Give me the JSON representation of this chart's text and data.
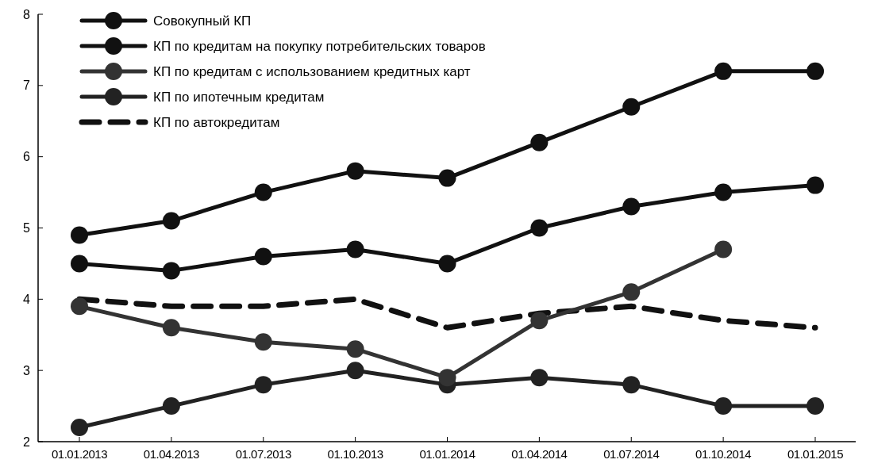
{
  "chart_data": {
    "type": "line",
    "categories": [
      "01.01.2013",
      "01.04.2013",
      "01.07.2013",
      "01.10.2013",
      "01.01.2014",
      "01.04.2014",
      "01.07.2014",
      "01.10.2014",
      "01.01.2015"
    ],
    "series": [
      {
        "name": "Совокупный КП",
        "color": "#111111",
        "values": [
          4.5,
          4.4,
          4.6,
          4.7,
          4.5,
          5.0,
          5.3,
          5.5,
          5.6
        ]
      },
      {
        "name": "КП по кредитам на покупку потребительских товаров",
        "color": "#111111",
        "values": [
          4.9,
          5.1,
          5.5,
          5.8,
          5.7,
          6.2,
          6.7,
          7.2,
          7.2
        ]
      },
      {
        "name": "КП по кредитам с использованием кредитных карт",
        "color": "#333333",
        "values": [
          3.9,
          3.6,
          3.4,
          3.3,
          2.9,
          3.7,
          4.1,
          4.7,
          null
        ]
      },
      {
        "name": "КП по ипотечным кредитам",
        "color": "#222222",
        "values": [
          2.2,
          2.5,
          2.8,
          3.0,
          2.8,
          2.9,
          2.8,
          2.5,
          2.5
        ]
      },
      {
        "name": "КП по автокредитам",
        "color": "#111111",
        "type": "line",
        "marker": "none",
        "line_style": "dashed",
        "values": [
          4.0,
          3.9,
          3.9,
          4.0,
          3.6,
          3.8,
          3.9,
          3.7,
          3.6
        ]
      }
    ],
    "ylim": [
      2,
      8
    ],
    "yticks": [
      2,
      3,
      4,
      5,
      6,
      7,
      8
    ],
    "grid": false,
    "legend": "top left",
    "marker": "circle",
    "line_style": "solid"
  }
}
